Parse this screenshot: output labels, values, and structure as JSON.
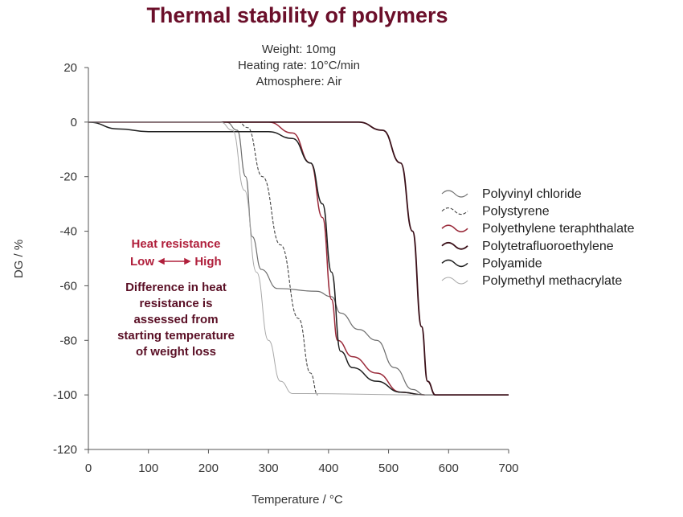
{
  "chart_data": {
    "type": "line",
    "title": "Thermal stability of polymers",
    "conditions": [
      "Weight: 10mg",
      "Heating rate: 10°C/min",
      "Atmosphere: Air"
    ],
    "xlabel": "Temperature / °C",
    "ylabel": "DG / %",
    "xlim": [
      0,
      700
    ],
    "ylim": [
      -120,
      20
    ],
    "xticks": [
      0,
      100,
      200,
      300,
      400,
      500,
      600,
      700
    ],
    "yticks": [
      20,
      0,
      -20,
      -40,
      -60,
      -80,
      -100,
      -120
    ],
    "grid": false,
    "legend_position": "right",
    "annotation": {
      "title_line1": "Heat resistance",
      "low": "Low",
      "high": "High",
      "body": [
        "Difference in heat",
        "resistance is",
        "assessed from",
        "starting temperature",
        "of weight loss"
      ]
    },
    "series": [
      {
        "name": "Polyvinyl chloride",
        "color": "#6e6e6e",
        "width": 1.2,
        "dash": "",
        "points": [
          [
            0,
            0
          ],
          [
            230,
            0
          ],
          [
            248,
            -3
          ],
          [
            262,
            -20
          ],
          [
            273,
            -42
          ],
          [
            288,
            -54
          ],
          [
            315,
            -61
          ],
          [
            380,
            -62
          ],
          [
            405,
            -64
          ],
          [
            420,
            -70
          ],
          [
            450,
            -76
          ],
          [
            480,
            -80
          ],
          [
            510,
            -90
          ],
          [
            540,
            -98
          ],
          [
            560,
            -100
          ],
          [
            700,
            -100
          ]
        ]
      },
      {
        "name": "Polystyrene",
        "color": "#444444",
        "width": 1.1,
        "dash": "4,2",
        "points": [
          [
            0,
            0
          ],
          [
            250,
            0
          ],
          [
            265,
            -2
          ],
          [
            290,
            -20
          ],
          [
            320,
            -45
          ],
          [
            350,
            -72
          ],
          [
            370,
            -92
          ],
          [
            382,
            -100
          ]
        ]
      },
      {
        "name": "Polyethylene teraphthalate",
        "color": "#9a2a3a",
        "width": 1.5,
        "dash": "",
        "points": [
          [
            0,
            0
          ],
          [
            300,
            0
          ],
          [
            340,
            -4
          ],
          [
            370,
            -15
          ],
          [
            390,
            -35
          ],
          [
            405,
            -65
          ],
          [
            415,
            -80
          ],
          [
            440,
            -86
          ],
          [
            480,
            -92
          ],
          [
            520,
            -99
          ],
          [
            560,
            -100
          ]
        ]
      },
      {
        "name": "Polytetrafluoroethylene",
        "color": "#3a0f18",
        "width": 1.8,
        "dash": "",
        "points": [
          [
            0,
            0
          ],
          [
            450,
            0
          ],
          [
            490,
            -3
          ],
          [
            520,
            -15
          ],
          [
            540,
            -40
          ],
          [
            555,
            -75
          ],
          [
            565,
            -95
          ],
          [
            578,
            -100
          ],
          [
            700,
            -100
          ]
        ]
      },
      {
        "name": "Polyamide",
        "color": "#1e1e1e",
        "width": 1.5,
        "dash": "",
        "points": [
          [
            0,
            0
          ],
          [
            50,
            -2.5
          ],
          [
            100,
            -3.5
          ],
          [
            300,
            -3.5
          ],
          [
            340,
            -6
          ],
          [
            370,
            -15
          ],
          [
            390,
            -30
          ],
          [
            405,
            -55
          ],
          [
            420,
            -84
          ],
          [
            440,
            -90
          ],
          [
            480,
            -95
          ],
          [
            520,
            -99
          ],
          [
            560,
            -100
          ]
        ]
      },
      {
        "name": "Polymethyl methacrylate",
        "color": "#a8a8a8",
        "width": 1,
        "dash": "",
        "points": [
          [
            0,
            0
          ],
          [
            220,
            0
          ],
          [
            240,
            -3
          ],
          [
            260,
            -25
          ],
          [
            280,
            -55
          ],
          [
            300,
            -80
          ],
          [
            320,
            -95
          ],
          [
            340,
            -99.5
          ],
          [
            560,
            -100
          ]
        ]
      }
    ]
  }
}
